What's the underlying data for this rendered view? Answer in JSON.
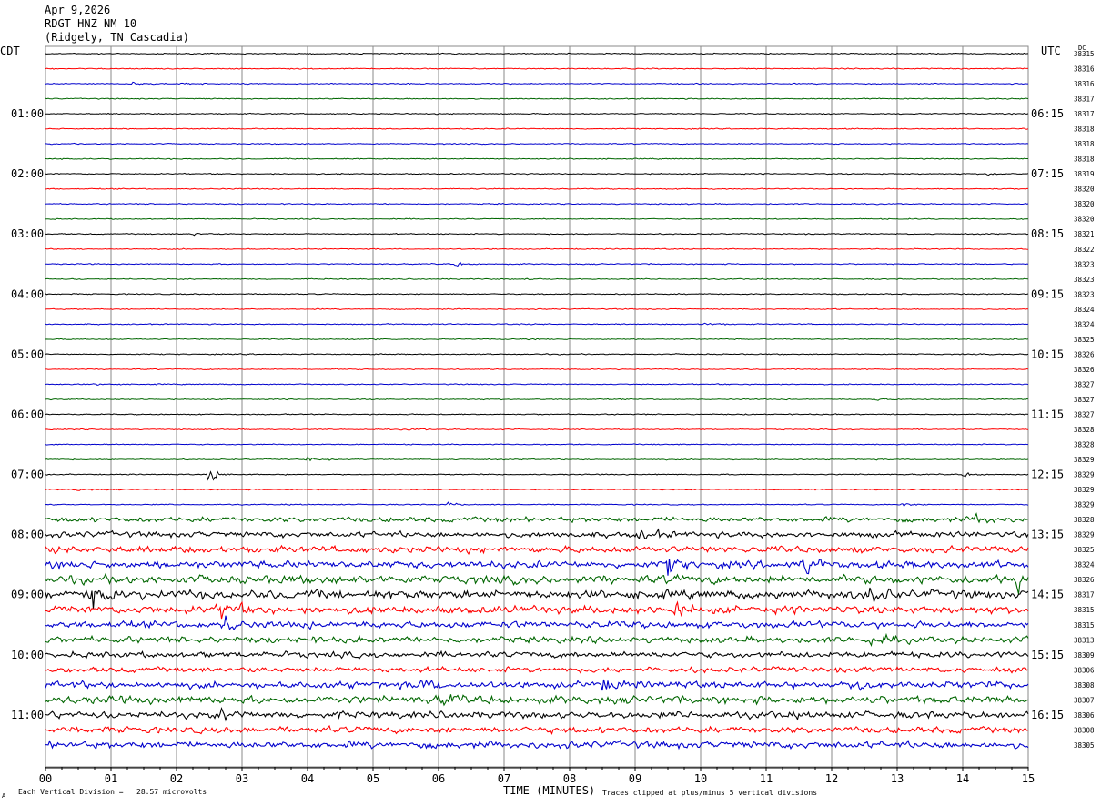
{
  "header": {
    "date": "Apr 9,2026",
    "station": "RDGT HNZ NM 10",
    "location": "(Ridgely, TN Cascadia)"
  },
  "left_label": "CDT",
  "right_label": "UTC",
  "dc_label": "DC",
  "footer": {
    "scale_note": "Each Vertical Division =   28.57 microvolts",
    "xlabel": "TIME (MINUTES)",
    "clip_note": "Traces clipped at plus/minus 5 vertical divisions",
    "corner_mark": "A"
  },
  "colors": {
    "trace_cycle": [
      "#000000",
      "#ff0000",
      "#0000cc",
      "#006600"
    ],
    "grid": "#8a8a8a"
  },
  "chart_data": {
    "type": "line",
    "title": "RDGT HNZ NM 10",
    "xlabel": "TIME (MINUTES)",
    "xlim": [
      0,
      15
    ],
    "x_ticks": [
      "00",
      "01",
      "02",
      "03",
      "04",
      "05",
      "06",
      "07",
      "08",
      "09",
      "10",
      "11",
      "12",
      "13",
      "14",
      "15"
    ],
    "left_hour_labels": [
      "01:00",
      "02:00",
      "03:00",
      "04:00",
      "05:00",
      "06:00",
      "07:00",
      "08:00",
      "09:00",
      "10:00",
      "11:00"
    ],
    "right_hour_labels": [
      "06:15",
      "07:15",
      "08:15",
      "09:15",
      "10:15",
      "11:15",
      "12:15",
      "13:15",
      "14:15",
      "15:15",
      "16:15"
    ],
    "dc_offsets": [
      "38315",
      "38316",
      "38316",
      "38317",
      "38317",
      "38318",
      "38318",
      "38318",
      "38319",
      "38320",
      "38320",
      "38320",
      "38321",
      "38322",
      "38323",
      "38323",
      "38323",
      "38324",
      "38324",
      "38325",
      "38326",
      "38326",
      "38327",
      "38327",
      "38327",
      "38328",
      "38328",
      "38329",
      "38329",
      "38329",
      "38329",
      "38328",
      "38329",
      "38325",
      "38324",
      "38326",
      "38317",
      "38315",
      "38315",
      "38313",
      "38309",
      "38306",
      "38308",
      "38307",
      "38306",
      "38308",
      "38305"
    ],
    "trace_noise": [
      1,
      1,
      1,
      1,
      1,
      1,
      1,
      1,
      1,
      1,
      1,
      1,
      1,
      1,
      1,
      1,
      1,
      1,
      1,
      1,
      1,
      1,
      1,
      1,
      1,
      1,
      1,
      1,
      1,
      1,
      1,
      2.2,
      2.5,
      3,
      3.2,
      3.6,
      3.8,
      3.4,
      3,
      2.8,
      2.6,
      2.4,
      3,
      3.4,
      3,
      2.8,
      3
    ],
    "events": [
      {
        "trace": 2,
        "minute": 1.35,
        "amp": 3
      },
      {
        "trace": 2,
        "minute": 2.1,
        "amp": 2
      },
      {
        "trace": 8,
        "minute": 14.4,
        "amp": 4
      },
      {
        "trace": 12,
        "minute": 2.25,
        "amp": 4
      },
      {
        "trace": 14,
        "minute": 6.25,
        "amp": 4
      },
      {
        "trace": 15,
        "minute": 7.3,
        "amp": 2
      },
      {
        "trace": 15,
        "minute": 14.3,
        "amp": 2
      },
      {
        "trace": 18,
        "minute": 10.05,
        "amp": 4
      },
      {
        "trace": 19,
        "minute": 5.0,
        "amp": 3
      },
      {
        "trace": 22,
        "minute": 0.8,
        "amp": 2
      },
      {
        "trace": 23,
        "minute": 12.65,
        "amp": 3
      },
      {
        "trace": 25,
        "minute": 5.55,
        "amp": 2
      },
      {
        "trace": 27,
        "minute": 4.0,
        "amp": 4
      },
      {
        "trace": 28,
        "minute": 2.5,
        "amp": 14
      },
      {
        "trace": 28,
        "minute": 14.0,
        "amp": 4
      },
      {
        "trace": 29,
        "minute": 0.45,
        "amp": 3
      },
      {
        "trace": 30,
        "minute": 6.15,
        "amp": 5
      },
      {
        "trace": 30,
        "minute": 13.05,
        "amp": 5
      },
      {
        "trace": 31,
        "minute": 14.2,
        "amp": 5
      },
      {
        "trace": 32,
        "minute": 9.1,
        "amp": 5
      },
      {
        "trace": 34,
        "minute": 11.55,
        "amp": 12
      },
      {
        "trace": 34,
        "minute": 9.5,
        "amp": 8
      },
      {
        "trace": 35,
        "minute": 14.85,
        "amp": 12
      },
      {
        "trace": 36,
        "minute": 0.7,
        "amp": 9
      },
      {
        "trace": 36,
        "minute": 12.6,
        "amp": 11
      },
      {
        "trace": 37,
        "minute": 2.7,
        "amp": 12
      },
      {
        "trace": 37,
        "minute": 9.6,
        "amp": 9
      },
      {
        "trace": 38,
        "minute": 2.75,
        "amp": 8
      },
      {
        "trace": 39,
        "minute": 12.6,
        "amp": 5
      },
      {
        "trace": 42,
        "minute": 5.7,
        "amp": 8
      },
      {
        "trace": 42,
        "minute": 8.5,
        "amp": 7
      },
      {
        "trace": 42,
        "minute": 12.4,
        "amp": 8
      },
      {
        "trace": 43,
        "minute": 6.0,
        "amp": 5
      },
      {
        "trace": 44,
        "minute": 2.7,
        "amp": 6
      }
    ]
  }
}
